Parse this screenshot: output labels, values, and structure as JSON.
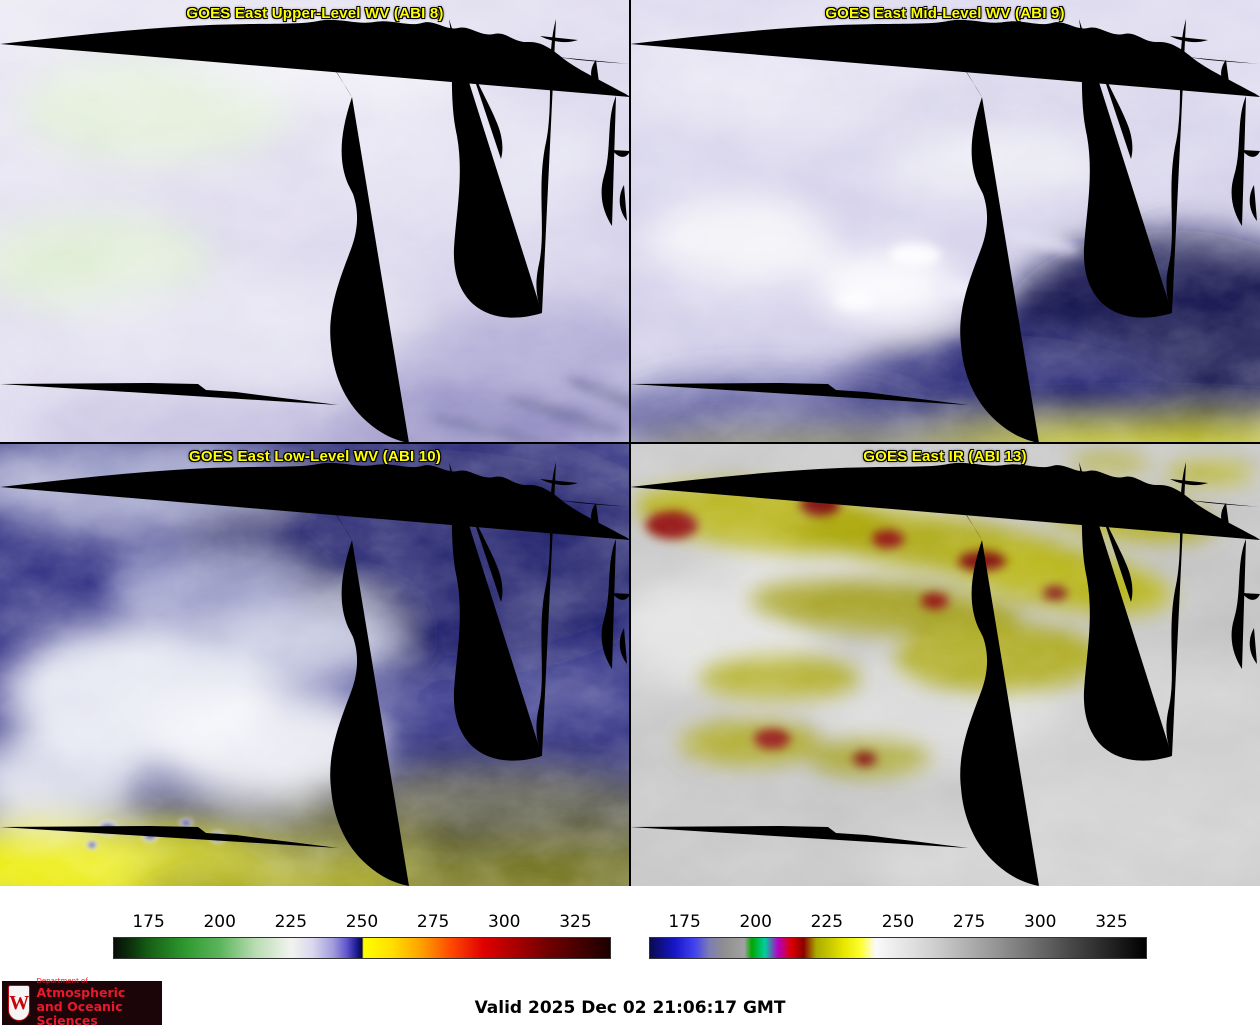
{
  "panels": [
    {
      "title": "GOES East Upper-Level WV (ABI 8)"
    },
    {
      "title": "GOES East Mid-Level WV (ABI 9)"
    },
    {
      "title": "GOES East Low-Level WV (ABI 10)"
    },
    {
      "title": "GOES East IR (ABI 13)"
    }
  ],
  "colorbars": [
    {
      "label": "wv-brightness-temperature-scale",
      "range": [
        162.5,
        337.5
      ],
      "ticks": [
        175,
        200,
        225,
        250,
        275,
        300,
        325
      ],
      "stops": [
        {
          "p": 0.0,
          "c": "#070d07"
        },
        {
          "p": 0.035,
          "c": "#0c330c"
        },
        {
          "p": 0.071,
          "c": "#166016"
        },
        {
          "p": 0.145,
          "c": "#2f9a2f"
        },
        {
          "p": 0.214,
          "c": "#5cb55c"
        },
        {
          "p": 0.285,
          "c": "#b9dcb2"
        },
        {
          "p": 0.357,
          "c": "#f1f3ee"
        },
        {
          "p": 0.4,
          "c": "#dad7ef"
        },
        {
          "p": 0.442,
          "c": "#a29cdb"
        },
        {
          "p": 0.468,
          "c": "#6458cf"
        },
        {
          "p": 0.488,
          "c": "#201e96"
        },
        {
          "p": 0.5,
          "c": "#060640"
        },
        {
          "p": 0.503,
          "c": "#ffff00"
        },
        {
          "p": 0.56,
          "c": "#ffdf00"
        },
        {
          "p": 0.62,
          "c": "#ffa000"
        },
        {
          "p": 0.68,
          "c": "#ff4800"
        },
        {
          "p": 0.745,
          "c": "#e00000"
        },
        {
          "p": 0.81,
          "c": "#a80000"
        },
        {
          "p": 0.88,
          "c": "#6e0000"
        },
        {
          "p": 0.929,
          "c": "#4c0000"
        },
        {
          "p": 1.0,
          "c": "#1c0000"
        }
      ]
    },
    {
      "label": "ir-brightness-temperature-scale",
      "range": [
        162.5,
        337.5
      ],
      "ticks": [
        175,
        200,
        225,
        250,
        275,
        300,
        325
      ],
      "stops": [
        {
          "p": 0.0,
          "c": "#0a0a52"
        },
        {
          "p": 0.05,
          "c": "#1616c8"
        },
        {
          "p": 0.09,
          "c": "#4242f0"
        },
        {
          "p": 0.12,
          "c": "#7d7db4"
        },
        {
          "p": 0.15,
          "c": "#8f8f8f"
        },
        {
          "p": 0.19,
          "c": "#a2a2a2"
        },
        {
          "p": 0.205,
          "c": "#00a800"
        },
        {
          "p": 0.232,
          "c": "#00cf9e"
        },
        {
          "p": 0.258,
          "c": "#b400c3"
        },
        {
          "p": 0.285,
          "c": "#dc0000"
        },
        {
          "p": 0.31,
          "c": "#8a0000"
        },
        {
          "p": 0.335,
          "c": "#aaaa00"
        },
        {
          "p": 0.39,
          "c": "#e6e600"
        },
        {
          "p": 0.425,
          "c": "#ffff30"
        },
        {
          "p": 0.455,
          "c": "#fafafa"
        },
        {
          "p": 0.57,
          "c": "#d0d0d0"
        },
        {
          "p": 0.7,
          "c": "#949494"
        },
        {
          "p": 0.85,
          "c": "#474747"
        },
        {
          "p": 0.929,
          "c": "#232323"
        },
        {
          "p": 1.0,
          "c": "#000000"
        }
      ]
    }
  ],
  "footer": {
    "valid_label": "Valid 2025 Dec 02 21:06:17 GMT",
    "logo": {
      "monogram": "W",
      "dept_prefix": "Department of",
      "line1": "Atmospheric",
      "line2": "and Oceanic Sciences"
    }
  },
  "style": {
    "panel_title_color": "#ffff00",
    "state_boundary_color": "#ff1c1c",
    "border_line_color": "#9a5a26",
    "water_line_color": "#2ca02c"
  }
}
